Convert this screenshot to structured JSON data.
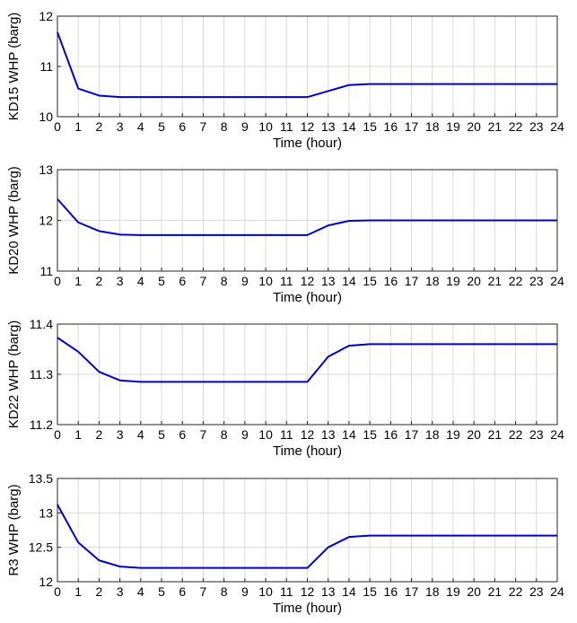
{
  "chart_data": [
    {
      "type": "line",
      "title": "",
      "xlabel": "Time (hour)",
      "ylabel": "KD15 WHP (barg)",
      "xlim": [
        0,
        24
      ],
      "ylim": [
        10,
        12
      ],
      "xticks": [
        0,
        1,
        2,
        3,
        4,
        5,
        6,
        7,
        8,
        9,
        10,
        11,
        12,
        13,
        14,
        15,
        16,
        17,
        18,
        19,
        20,
        21,
        22,
        23,
        24
      ],
      "yticks": [
        10,
        11,
        12
      ],
      "ytick_labels": [
        "10",
        "11",
        "12"
      ],
      "grid": true,
      "series": [
        {
          "color": "#0000cc",
          "x": [
            0,
            1,
            2,
            3,
            4,
            5,
            6,
            7,
            8,
            9,
            10,
            11,
            12,
            13,
            14,
            15,
            16,
            17,
            18,
            19,
            20,
            21,
            22,
            23,
            24
          ],
          "values": [
            11.68,
            10.56,
            10.42,
            10.39,
            10.39,
            10.39,
            10.39,
            10.39,
            10.39,
            10.39,
            10.39,
            10.39,
            10.39,
            10.51,
            10.63,
            10.65,
            10.65,
            10.65,
            10.65,
            10.65,
            10.65,
            10.65,
            10.65,
            10.65,
            10.65
          ]
        }
      ]
    },
    {
      "type": "line",
      "title": "",
      "xlabel": "Time (hour)",
      "ylabel": "KD20 WHP (barg)",
      "xlim": [
        0,
        24
      ],
      "ylim": [
        11,
        13
      ],
      "xticks": [
        0,
        1,
        2,
        3,
        4,
        5,
        6,
        7,
        8,
        9,
        10,
        11,
        12,
        13,
        14,
        15,
        16,
        17,
        18,
        19,
        20,
        21,
        22,
        23,
        24
      ],
      "yticks": [
        11,
        12,
        13
      ],
      "ytick_labels": [
        "11",
        "12",
        "13"
      ],
      "grid": true,
      "series": [
        {
          "color": "#0000cc",
          "x": [
            0,
            1,
            2,
            3,
            4,
            5,
            6,
            7,
            8,
            9,
            10,
            11,
            12,
            13,
            14,
            15,
            16,
            17,
            18,
            19,
            20,
            21,
            22,
            23,
            24
          ],
          "values": [
            12.42,
            11.96,
            11.79,
            11.72,
            11.71,
            11.71,
            11.71,
            11.71,
            11.71,
            11.71,
            11.71,
            11.71,
            11.71,
            11.9,
            11.99,
            12.0,
            12.0,
            12.0,
            12.0,
            12.0,
            12.0,
            12.0,
            12.0,
            12.0,
            12.0
          ]
        }
      ]
    },
    {
      "type": "line",
      "title": "",
      "xlabel": "Time (hour)",
      "ylabel": "KD22 WHP (barg)",
      "xlim": [
        0,
        24
      ],
      "ylim": [
        11.2,
        11.4
      ],
      "xticks": [
        0,
        1,
        2,
        3,
        4,
        5,
        6,
        7,
        8,
        9,
        10,
        11,
        12,
        13,
        14,
        15,
        16,
        17,
        18,
        19,
        20,
        21,
        22,
        23,
        24
      ],
      "yticks": [
        11.2,
        11.3,
        11.4
      ],
      "ytick_labels": [
        "11.2",
        "11.3",
        "11.4"
      ],
      "grid": true,
      "series": [
        {
          "color": "#0000cc",
          "x": [
            0,
            1,
            2,
            3,
            4,
            5,
            6,
            7,
            8,
            9,
            10,
            11,
            12,
            13,
            14,
            15,
            16,
            17,
            18,
            19,
            20,
            21,
            22,
            23,
            24
          ],
          "values": [
            11.373,
            11.345,
            11.305,
            11.288,
            11.285,
            11.285,
            11.285,
            11.285,
            11.285,
            11.285,
            11.285,
            11.285,
            11.285,
            11.335,
            11.357,
            11.36,
            11.36,
            11.36,
            11.36,
            11.36,
            11.36,
            11.36,
            11.36,
            11.36,
            11.36
          ]
        }
      ]
    },
    {
      "type": "line",
      "title": "",
      "xlabel": "Time (hour)",
      "ylabel": "R3 WHP (barg)",
      "xlim": [
        0,
        24
      ],
      "ylim": [
        12,
        13.5
      ],
      "xticks": [
        0,
        1,
        2,
        3,
        4,
        5,
        6,
        7,
        8,
        9,
        10,
        11,
        12,
        13,
        14,
        15,
        16,
        17,
        18,
        19,
        20,
        21,
        22,
        23,
        24
      ],
      "yticks": [
        12,
        12.5,
        13,
        13.5
      ],
      "ytick_labels": [
        "12",
        "12.5",
        "13",
        "13.5"
      ],
      "grid": true,
      "series": [
        {
          "color": "#0000cc",
          "x": [
            0,
            1,
            2,
            3,
            4,
            5,
            6,
            7,
            8,
            9,
            10,
            11,
            12,
            13,
            14,
            15,
            16,
            17,
            18,
            19,
            20,
            21,
            22,
            23,
            24
          ],
          "values": [
            13.12,
            12.57,
            12.31,
            12.22,
            12.2,
            12.2,
            12.2,
            12.2,
            12.2,
            12.2,
            12.2,
            12.2,
            12.2,
            12.5,
            12.65,
            12.67,
            12.67,
            12.67,
            12.67,
            12.67,
            12.67,
            12.67,
            12.67,
            12.67,
            12.67
          ]
        }
      ]
    }
  ]
}
